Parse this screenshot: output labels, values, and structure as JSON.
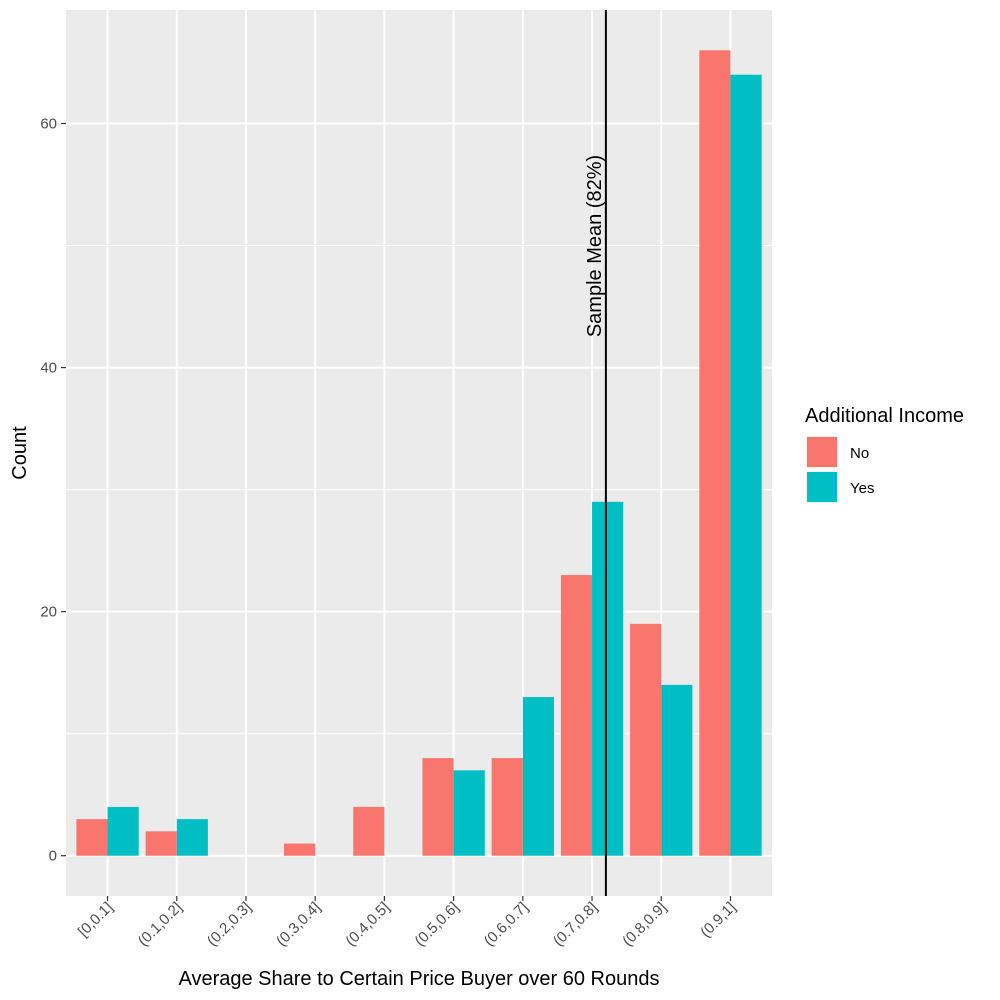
{
  "chart_data": {
    "type": "bar",
    "xlabel": "Average Share to Certain Price Buyer over 60 Rounds",
    "ylabel": "Count",
    "categories": [
      "[0,0.1]",
      "(0.1,0.2]",
      "(0.2,0.3]",
      "(0.3,0.4]",
      "(0.4,0.5]",
      "(0.5,0.6]",
      "(0.6,0.7]",
      "(0.7,0.8]",
      "(0.8,0.9]",
      "(0.9,1]"
    ],
    "series": [
      {
        "name": "No",
        "color": "#F8766D",
        "values": [
          3,
          2,
          0,
          1,
          4,
          8,
          8,
          23,
          19,
          66
        ]
      },
      {
        "name": "Yes",
        "color": "#00BFC4",
        "values": [
          4,
          3,
          0,
          0,
          0,
          7,
          13,
          29,
          14,
          64
        ]
      }
    ],
    "ylim": [
      -3.3,
      69.3
    ],
    "yticks": [
      0,
      20,
      40,
      60
    ],
    "grid": true,
    "legend": {
      "title": "Additional Income",
      "placement": "right"
    },
    "annotation": {
      "text": "Sample Mean (82%)",
      "x_category_position": 8.2
    }
  }
}
